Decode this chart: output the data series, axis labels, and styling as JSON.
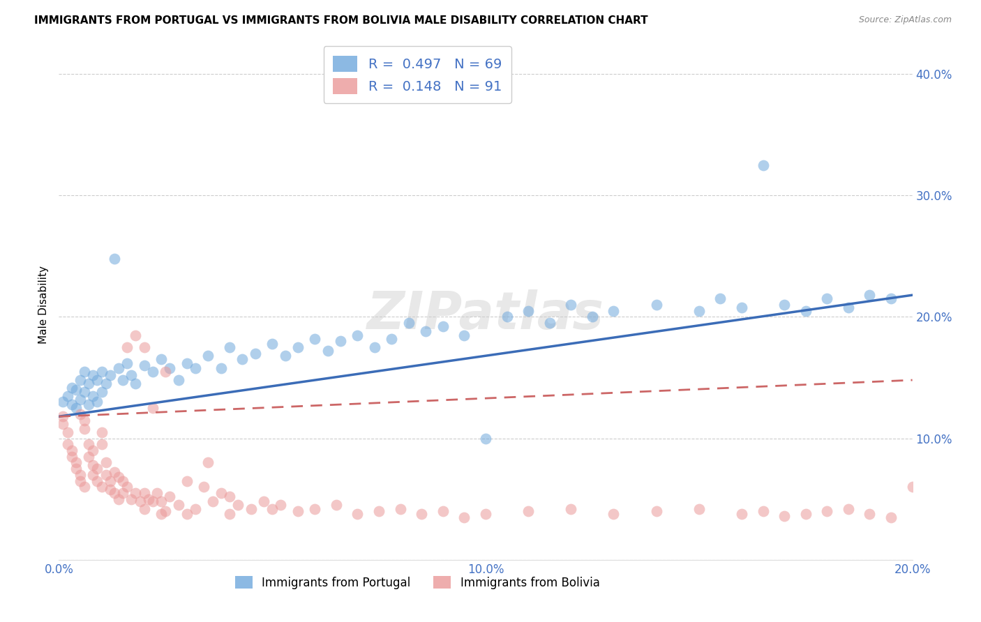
{
  "title": "IMMIGRANTS FROM PORTUGAL VS IMMIGRANTS FROM BOLIVIA MALE DISABILITY CORRELATION CHART",
  "source": "Source: ZipAtlas.com",
  "ylabel": "Male Disability",
  "xlim": [
    0.0,
    0.2
  ],
  "ylim": [
    0.0,
    0.42
  ],
  "portugal_color": "#6fa8dc",
  "bolivia_color": "#ea9999",
  "portugal_R": 0.497,
  "portugal_N": 69,
  "bolivia_R": 0.148,
  "bolivia_N": 91,
  "portugal_line_color": "#3b6cb7",
  "bolivia_line_color": "#cc6666",
  "watermark": "ZIPatlas",
  "background_color": "#ffffff",
  "grid_color": "#cccccc",
  "portugal_x": [
    0.001,
    0.002,
    0.003,
    0.003,
    0.004,
    0.004,
    0.005,
    0.005,
    0.006,
    0.006,
    0.007,
    0.007,
    0.008,
    0.008,
    0.009,
    0.009,
    0.01,
    0.01,
    0.011,
    0.012,
    0.013,
    0.014,
    0.015,
    0.016,
    0.017,
    0.018,
    0.02,
    0.022,
    0.024,
    0.026,
    0.028,
    0.03,
    0.032,
    0.035,
    0.038,
    0.04,
    0.043,
    0.046,
    0.05,
    0.053,
    0.056,
    0.06,
    0.063,
    0.066,
    0.07,
    0.074,
    0.078,
    0.082,
    0.086,
    0.09,
    0.095,
    0.1,
    0.105,
    0.11,
    0.115,
    0.12,
    0.125,
    0.13,
    0.14,
    0.15,
    0.155,
    0.16,
    0.165,
    0.17,
    0.175,
    0.18,
    0.185,
    0.19,
    0.195
  ],
  "portugal_y": [
    0.13,
    0.135,
    0.128,
    0.142,
    0.125,
    0.14,
    0.132,
    0.148,
    0.138,
    0.155,
    0.128,
    0.145,
    0.135,
    0.152,
    0.13,
    0.148,
    0.138,
    0.155,
    0.145,
    0.152,
    0.248,
    0.158,
    0.148,
    0.162,
    0.152,
    0.145,
    0.16,
    0.155,
    0.165,
    0.158,
    0.148,
    0.162,
    0.158,
    0.168,
    0.158,
    0.175,
    0.165,
    0.17,
    0.178,
    0.168,
    0.175,
    0.182,
    0.172,
    0.18,
    0.185,
    0.175,
    0.182,
    0.195,
    0.188,
    0.192,
    0.185,
    0.1,
    0.2,
    0.205,
    0.195,
    0.21,
    0.2,
    0.205,
    0.21,
    0.205,
    0.215,
    0.208,
    0.325,
    0.21,
    0.205,
    0.215,
    0.208,
    0.218,
    0.215
  ],
  "bolivia_x": [
    0.001,
    0.001,
    0.002,
    0.002,
    0.003,
    0.003,
    0.004,
    0.004,
    0.005,
    0.005,
    0.005,
    0.006,
    0.006,
    0.006,
    0.007,
    0.007,
    0.008,
    0.008,
    0.008,
    0.009,
    0.009,
    0.01,
    0.01,
    0.01,
    0.011,
    0.011,
    0.012,
    0.012,
    0.013,
    0.013,
    0.014,
    0.014,
    0.015,
    0.015,
    0.016,
    0.016,
    0.017,
    0.018,
    0.018,
    0.019,
    0.02,
    0.02,
    0.021,
    0.022,
    0.023,
    0.024,
    0.025,
    0.026,
    0.028,
    0.03,
    0.032,
    0.034,
    0.036,
    0.038,
    0.04,
    0.042,
    0.045,
    0.048,
    0.052,
    0.056,
    0.06,
    0.065,
    0.07,
    0.075,
    0.08,
    0.085,
    0.09,
    0.095,
    0.1,
    0.11,
    0.12,
    0.13,
    0.14,
    0.15,
    0.16,
    0.165,
    0.17,
    0.175,
    0.18,
    0.185,
    0.19,
    0.195,
    0.2,
    0.025,
    0.03,
    0.035,
    0.04,
    0.05,
    0.02,
    0.022,
    0.024
  ],
  "bolivia_y": [
    0.118,
    0.112,
    0.105,
    0.095,
    0.09,
    0.085,
    0.08,
    0.075,
    0.07,
    0.065,
    0.12,
    0.06,
    0.115,
    0.108,
    0.095,
    0.085,
    0.078,
    0.07,
    0.09,
    0.065,
    0.075,
    0.06,
    0.095,
    0.105,
    0.07,
    0.08,
    0.065,
    0.058,
    0.072,
    0.055,
    0.068,
    0.05,
    0.065,
    0.055,
    0.175,
    0.06,
    0.05,
    0.055,
    0.185,
    0.048,
    0.175,
    0.055,
    0.05,
    0.125,
    0.055,
    0.048,
    0.155,
    0.052,
    0.045,
    0.065,
    0.042,
    0.06,
    0.048,
    0.055,
    0.052,
    0.045,
    0.042,
    0.048,
    0.045,
    0.04,
    0.042,
    0.045,
    0.038,
    0.04,
    0.042,
    0.038,
    0.04,
    0.035,
    0.038,
    0.04,
    0.042,
    0.038,
    0.04,
    0.042,
    0.038,
    0.04,
    0.036,
    0.038,
    0.04,
    0.042,
    0.038,
    0.035,
    0.06,
    0.04,
    0.038,
    0.08,
    0.038,
    0.042,
    0.042,
    0.048,
    0.038
  ],
  "port_line_x0": 0.0,
  "port_line_x1": 0.2,
  "port_line_y0": 0.118,
  "port_line_y1": 0.218,
  "boliv_line_x0": 0.0,
  "boliv_line_x1": 0.2,
  "boliv_line_y0": 0.118,
  "boliv_line_y1": 0.148
}
